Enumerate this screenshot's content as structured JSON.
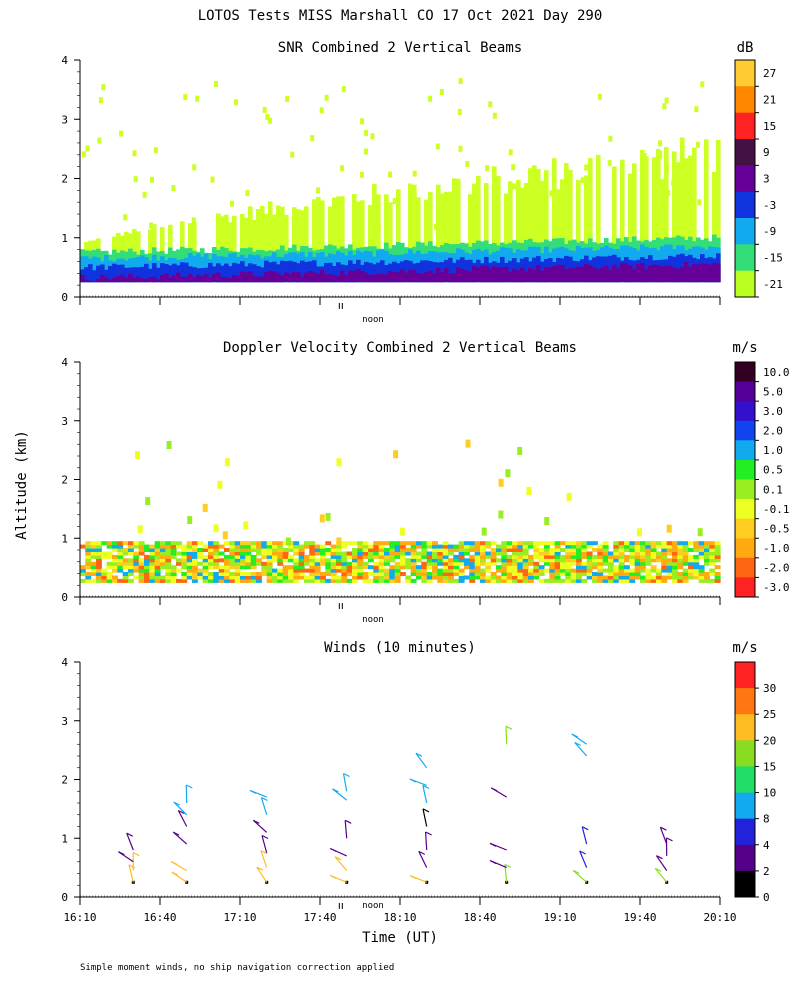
{
  "figure": {
    "title": "LOTOS Tests MISS Marshall CO  17 Oct 2021 Day 290",
    "ylabel": "Altitude (km)",
    "xlabel": "Time (UT)",
    "noon_label": "noon",
    "footnote": "Simple moment winds, no ship navigation correction applied"
  },
  "chart_data": [
    {
      "type": "heatmap",
      "title": "SNR Combined 2 Vertical Beams",
      "units": "dB",
      "y_ticks": [
        0,
        1,
        2,
        3,
        4
      ],
      "ylim": [
        0,
        4
      ],
      "colorbar": {
        "labels": [
          "27",
          "21",
          "15",
          "9",
          "3",
          "-3",
          "-9",
          "-15",
          "-21"
        ],
        "colors": [
          "#ffcc33",
          "#ff8800",
          "#ff2222",
          "#441144",
          "#660099",
          "#1133dd",
          "#11aaee",
          "#33dd77",
          "#bbff22"
        ]
      },
      "layers": [
        {
          "level": "-21",
          "color": "#ccff22",
          "start_top": 0.9,
          "end_top": 2.8
        },
        {
          "level": "-15",
          "color": "#33dd77",
          "start_top": 0.75,
          "end_top": 1.0
        },
        {
          "level": "-9",
          "color": "#11aaee",
          "start_top": 0.65,
          "end_top": 0.85
        },
        {
          "level": "-3",
          "color": "#1133dd",
          "start_top": 0.5,
          "end_top": 0.7
        },
        {
          "level": "3",
          "color": "#660099",
          "start_top": 0.32,
          "end_top": 0.55
        }
      ]
    },
    {
      "type": "heatmap",
      "title": "Doppler Velocity Combined 2 Vertical Beams",
      "units": "m/s",
      "y_ticks": [
        0,
        1,
        2,
        3,
        4
      ],
      "ylim": [
        0,
        4
      ],
      "colorbar": {
        "labels": [
          "10.0",
          "5.0",
          "3.0",
          "2.0",
          "1.0",
          "0.5",
          "0.1",
          "-0.1",
          "-0.5",
          "-1.0",
          "-2.0",
          "-3.0"
        ],
        "colors": [
          "#330022",
          "#550099",
          "#3311cc",
          "#1144ee",
          "#11aaee",
          "#22ee22",
          "#99ee22",
          "#eeff22",
          "#ffcc22",
          "#ffaa11",
          "#ff6611",
          "#ff2222"
        ]
      },
      "field_top_km": 0.95
    },
    {
      "type": "scatter",
      "title": "Winds (10 minutes)",
      "units": "m/s",
      "y_ticks": [
        0,
        1,
        2,
        3,
        4
      ],
      "ylim": [
        0,
        4
      ],
      "x_ticks": [
        "16:10",
        "16:40",
        "17:10",
        "17:40",
        "18:10",
        "18:40",
        "19:10",
        "19:40",
        "20:10"
      ],
      "colorbar": {
        "labels": [
          "30",
          "25",
          "20",
          "15",
          "10",
          "8",
          "4",
          "2",
          "0"
        ],
        "colors": [
          "#ff2222",
          "#ff7711",
          "#ffbb22",
          "#88dd22",
          "#22dd66",
          "#11aaee",
          "#2222dd",
          "#550088",
          "#000000"
        ]
      },
      "profiles": [
        {
          "time": "16:30",
          "winds": [
            {
              "alt": 0.25,
              "speed": 22
            },
            {
              "alt": 0.45,
              "speed": 21
            },
            {
              "alt": 0.6,
              "speed": 3
            },
            {
              "alt": 0.8,
              "speed": 2
            }
          ]
        },
        {
          "time": "16:50",
          "winds": [
            {
              "alt": 0.25,
              "speed": 21
            },
            {
              "alt": 0.45,
              "speed": 20
            },
            {
              "alt": 0.9,
              "speed": 3
            },
            {
              "alt": 1.2,
              "speed": 3
            },
            {
              "alt": 1.4,
              "speed": 9
            },
            {
              "alt": 1.6,
              "speed": 9
            }
          ]
        },
        {
          "time": "17:20",
          "winds": [
            {
              "alt": 0.25,
              "speed": 21
            },
            {
              "alt": 0.5,
              "speed": 20
            },
            {
              "alt": 0.75,
              "speed": 2
            },
            {
              "alt": 1.1,
              "speed": 3
            },
            {
              "alt": 1.4,
              "speed": 9
            },
            {
              "alt": 1.7,
              "speed": 9
            }
          ]
        },
        {
          "time": "17:50",
          "winds": [
            {
              "alt": 0.25,
              "speed": 21
            },
            {
              "alt": 0.45,
              "speed": 20
            },
            {
              "alt": 0.7,
              "speed": 3
            },
            {
              "alt": 1.0,
              "speed": 3
            },
            {
              "alt": 1.65,
              "speed": 9
            },
            {
              "alt": 1.8,
              "speed": 9
            }
          ]
        },
        {
          "time": "18:20",
          "winds": [
            {
              "alt": 0.25,
              "speed": 20
            },
            {
              "alt": 0.5,
              "speed": 3
            },
            {
              "alt": 0.8,
              "speed": 3
            },
            {
              "alt": 1.2,
              "speed": 1
            },
            {
              "alt": 1.6,
              "speed": 9
            },
            {
              "alt": 1.9,
              "speed": 9
            },
            {
              "alt": 2.2,
              "speed": 9
            }
          ]
        },
        {
          "time": "18:50",
          "winds": [
            {
              "alt": 0.25,
              "speed": 17
            },
            {
              "alt": 0.5,
              "speed": 3
            },
            {
              "alt": 0.8,
              "speed": 3
            },
            {
              "alt": 1.7,
              "speed": 3
            },
            {
              "alt": 2.6,
              "speed": 16
            }
          ]
        },
        {
          "time": "19:20",
          "winds": [
            {
              "alt": 0.25,
              "speed": 17
            },
            {
              "alt": 0.5,
              "speed": 5
            },
            {
              "alt": 0.9,
              "speed": 5
            },
            {
              "alt": 2.4,
              "speed": 9
            },
            {
              "alt": 2.6,
              "speed": 9
            }
          ]
        },
        {
          "time": "19:50",
          "winds": [
            {
              "alt": 0.25,
              "speed": 17
            },
            {
              "alt": 0.45,
              "speed": 3
            },
            {
              "alt": 0.7,
              "speed": 3
            },
            {
              "alt": 0.9,
              "speed": 3
            }
          ]
        }
      ]
    }
  ]
}
